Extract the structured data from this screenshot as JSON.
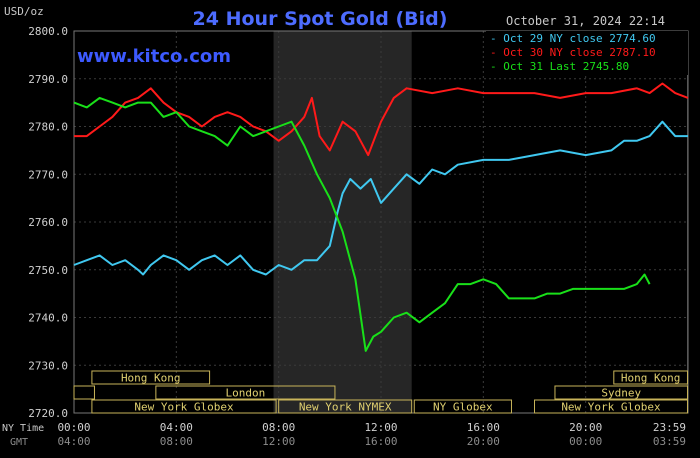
{
  "chart_data": {
    "type": "line",
    "title": "24 Hour Spot Gold (Bid)",
    "ylabel": "USD/oz",
    "watermark": "www.kitco.com",
    "date_time": "October 31, 2024 22:14",
    "ylim": [
      2720,
      2800
    ],
    "yticks": [
      2720,
      2730,
      2740,
      2750,
      2760,
      2770,
      2780,
      2790,
      2800
    ],
    "ytick_labels": [
      "2720.0",
      "2730.0",
      "2740.0",
      "2750.0",
      "2760.0",
      "2770.0",
      "2780.0",
      "2790.0",
      "2800.0"
    ],
    "x_tick_hours": [
      0,
      4,
      8,
      12,
      16,
      20,
      23.98
    ],
    "x_row_labels": {
      "ny": "NY Time",
      "gmt": "GMT"
    },
    "x_ticks_ny": [
      "00:00",
      "04:00",
      "08:00",
      "12:00",
      "16:00",
      "20:00",
      "23:59"
    ],
    "x_ticks_gmt": [
      "04:00",
      "08:00",
      "12:00",
      "16:00",
      "20:00",
      "00:00",
      "03:59"
    ],
    "grid": true,
    "shaded_period_hours": [
      7.8,
      13.2
    ],
    "legend_position": "top-right",
    "market_sessions": [
      {
        "label": "Hong Kong",
        "row": 0,
        "start": 0.7,
        "end": 5.3
      },
      {
        "label": "Hong Kong",
        "row": 0,
        "start": 21.1,
        "end": 23.98
      },
      {
        "label": "London",
        "row": 1,
        "start": 3.2,
        "end": 10.2
      },
      {
        "label": "",
        "row": 1,
        "start": 0,
        "end": 0.8
      },
      {
        "label": "Sydney",
        "row": 1,
        "start": 18.8,
        "end": 23.98
      },
      {
        "label": "New York Globex",
        "row": 2,
        "start": 0.7,
        "end": 7.9
      },
      {
        "label": "New York NYMEX",
        "row": 2,
        "start": 8.0,
        "end": 13.2
      },
      {
        "label": "NY Globex",
        "row": 2,
        "start": 13.3,
        "end": 17.1
      },
      {
        "label": "New York Globex",
        "row": 2,
        "start": 18.0,
        "end": 23.98
      }
    ],
    "series": [
      {
        "name": "Oct 29 NY close 2774.60",
        "color": "#40c8f0",
        "x": [
          0,
          0.5,
          1,
          1.5,
          2,
          2.5,
          2.7,
          3,
          3.5,
          4,
          4.5,
          5,
          5.5,
          6,
          6.5,
          7,
          7.5,
          8,
          8.5,
          9,
          9.5,
          10,
          10.3,
          10.5,
          10.8,
          11.2,
          11.6,
          12,
          12.5,
          13,
          13.5,
          14,
          14.5,
          15,
          16,
          17,
          18,
          19,
          20,
          21,
          21.5,
          22,
          22.5,
          23,
          23.5,
          24
        ],
        "y": [
          2751,
          2752,
          2753,
          2751,
          2752,
          2750,
          2749,
          2751,
          2753,
          2752,
          2750,
          2752,
          2753,
          2751,
          2753,
          2750,
          2749,
          2751,
          2750,
          2752,
          2752,
          2755,
          2762,
          2766,
          2769,
          2767,
          2769,
          2764,
          2767,
          2770,
          2768,
          2771,
          2770,
          2772,
          2773,
          2773,
          2774,
          2775,
          2774,
          2775,
          2777,
          2777,
          2778,
          2781,
          2778,
          2778
        ]
      },
      {
        "name": "Oct 30 NY close 2787.10",
        "color": "#ff1a1a",
        "x": [
          0,
          0.5,
          1,
          1.5,
          2,
          2.5,
          3,
          3.5,
          4,
          4.5,
          5,
          5.5,
          6,
          6.5,
          7,
          7.5,
          8,
          8.5,
          9,
          9.3,
          9.6,
          10,
          10.5,
          11,
          11.5,
          12,
          12.5,
          13,
          14,
          15,
          16,
          17,
          18,
          19,
          20,
          21,
          22,
          22.5,
          23,
          23.5,
          24
        ],
        "y": [
          2778,
          2778,
          2780,
          2782,
          2785,
          2786,
          2788,
          2785,
          2783,
          2782,
          2780,
          2782,
          2783,
          2782,
          2780,
          2779,
          2777,
          2779,
          2782,
          2786,
          2778,
          2775,
          2781,
          2779,
          2774,
          2781,
          2786,
          2788,
          2787,
          2788,
          2787,
          2787,
          2787,
          2786,
          2787,
          2787,
          2788,
          2787,
          2789,
          2787,
          2786
        ]
      },
      {
        "name": "Oct 31 Last 2745.80",
        "color": "#19e019",
        "x": [
          0,
          0.5,
          1,
          1.5,
          2,
          2.5,
          3,
          3.5,
          4,
          4.5,
          5,
          5.5,
          6,
          6.5,
          7,
          7.5,
          8,
          8.5,
          9,
          9.5,
          10,
          10.5,
          11,
          11.4,
          11.7,
          12,
          12.5,
          13,
          13.5,
          14,
          14.5,
          15,
          15.5,
          16,
          16.5,
          17,
          17.5,
          18,
          18.5,
          19,
          19.5,
          20,
          20.5,
          21,
          21.5,
          22,
          22.3,
          22.5
        ],
        "y": [
          2785,
          2784,
          2786,
          2785,
          2784,
          2785,
          2785,
          2782,
          2783,
          2780,
          2779,
          2778,
          2776,
          2780,
          2778,
          2779,
          2780,
          2781,
          2776,
          2770,
          2765,
          2758,
          2748,
          2733,
          2736,
          2737,
          2740,
          2741,
          2739,
          2741,
          2743,
          2747,
          2747,
          2748,
          2747,
          2744,
          2744,
          2744,
          2745,
          2745,
          2746,
          2746,
          2746,
          2746,
          2746,
          2747,
          2749,
          2747
        ]
      }
    ]
  }
}
